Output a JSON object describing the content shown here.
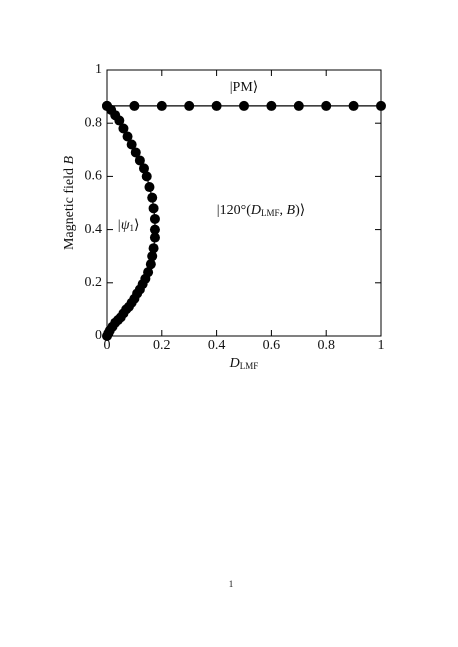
{
  "chart_data": {
    "type": "line",
    "x_label": [
      "D",
      "LMF"
    ],
    "y_label": [
      "Magnetic field ",
      "B"
    ],
    "annotations": {
      "pm": "|PM⟩",
      "psi": [
        "|ψ",
        "1",
        "⟩"
      ],
      "phase": [
        "|120°(",
        "D",
        "LMF",
        ", ",
        "B",
        ")⟩"
      ]
    },
    "xlim": [
      0,
      1
    ],
    "ylim": [
      0,
      1
    ],
    "xticks": [
      0,
      0.2,
      0.4,
      0.6,
      0.8,
      1
    ],
    "yticks": [
      0,
      0.2,
      0.4,
      0.6,
      0.8,
      1
    ],
    "series": [
      {
        "color": "#000000",
        "x": [
          0,
          0.1,
          0.2,
          0.3,
          0.4,
          0.5,
          0.6,
          0.7,
          0.8,
          0.9,
          1
        ],
        "values": [
          0.865,
          0.865,
          0.865,
          0.865,
          0.865,
          0.865,
          0.865,
          0.865,
          0.865,
          0.865,
          0.865
        ]
      },
      {
        "color": "#000000",
        "x": [
          0,
          0.005,
          0.01,
          0.02,
          0.03,
          0.04,
          0.05,
          0.06,
          0.07,
          0.08,
          0.09,
          0.1,
          0.11,
          0.12,
          0.13,
          0.14,
          0.15,
          0.16,
          0.165,
          0.17,
          0.175,
          0.175,
          0.175,
          0.17,
          0.165,
          0.155,
          0.145,
          0.135,
          0.12,
          0.105,
          0.09,
          0.075,
          0.06,
          0.045,
          0.03,
          0.015,
          0
        ],
        "values": [
          0,
          0.01,
          0.02,
          0.035,
          0.05,
          0.06,
          0.07,
          0.085,
          0.1,
          0.11,
          0.125,
          0.14,
          0.16,
          0.175,
          0.195,
          0.215,
          0.24,
          0.27,
          0.3,
          0.33,
          0.37,
          0.4,
          0.44,
          0.48,
          0.52,
          0.56,
          0.6,
          0.63,
          0.66,
          0.69,
          0.72,
          0.75,
          0.78,
          0.81,
          0.83,
          0.85,
          0.865
        ]
      }
    ]
  },
  "page_number": "1"
}
